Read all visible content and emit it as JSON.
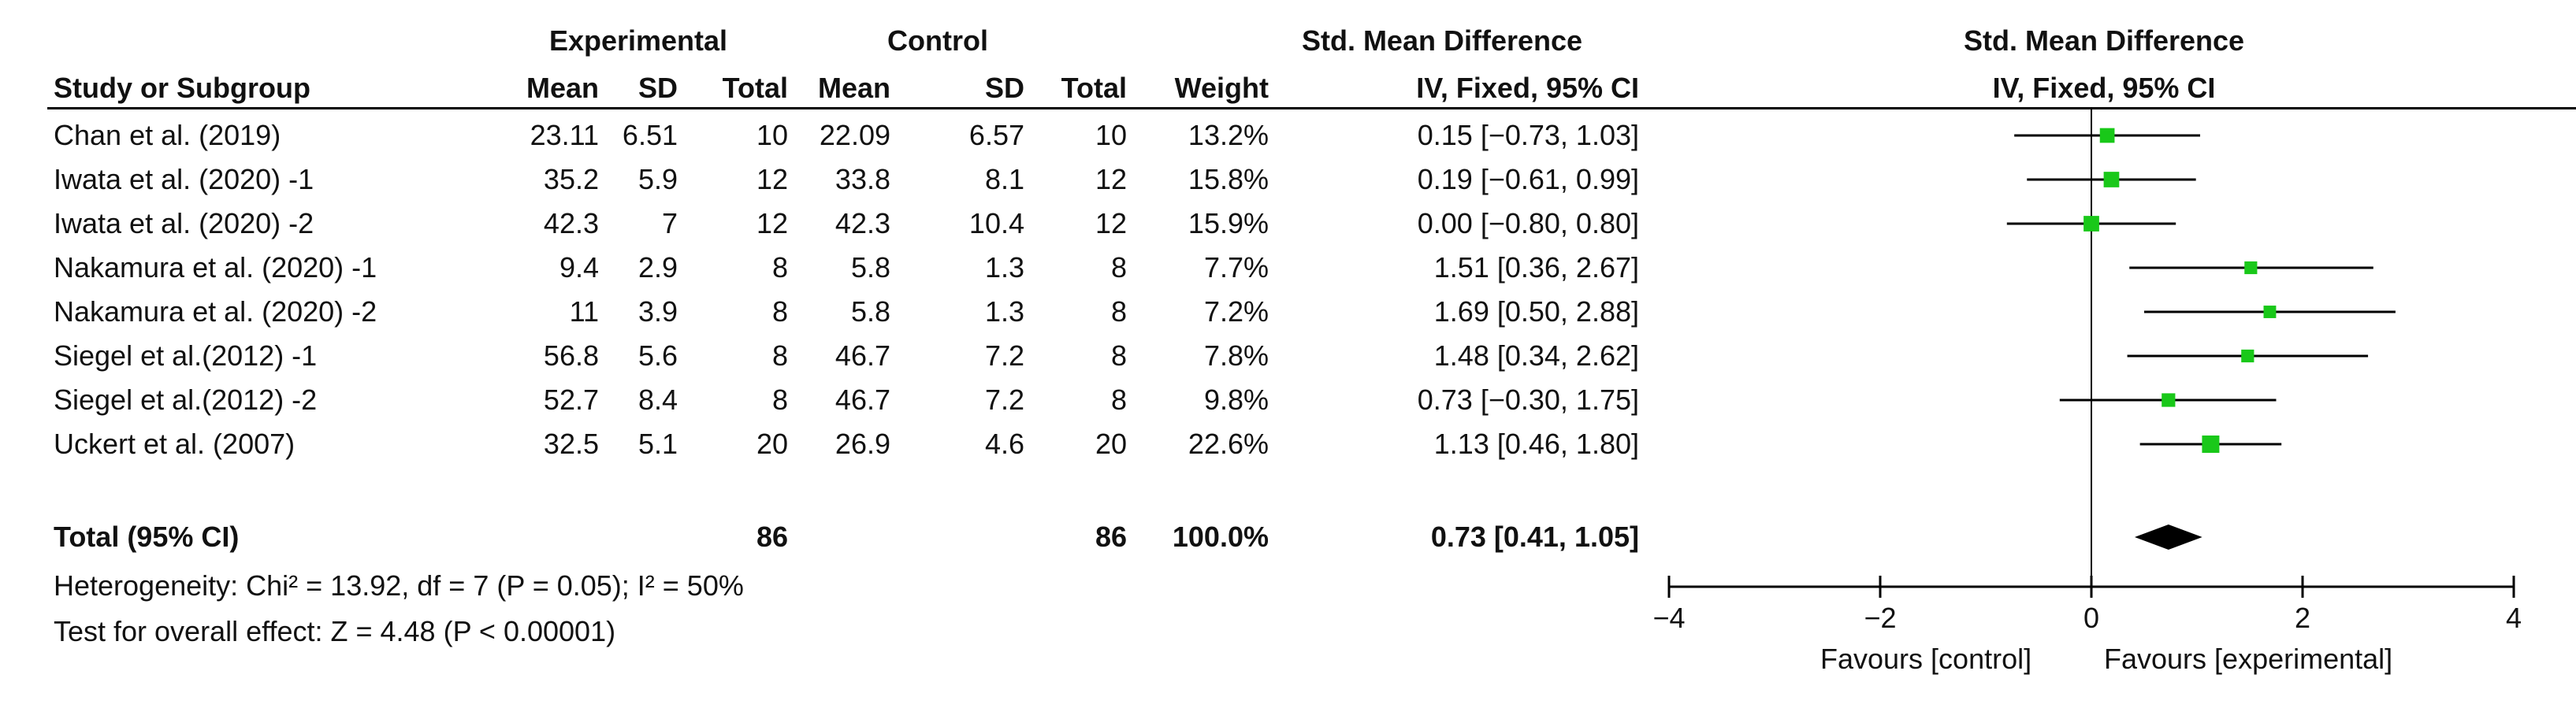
{
  "header": {
    "group_experimental": "Experimental",
    "group_control": "Control",
    "effect_label": "Std. Mean Difference",
    "plot_title": "Std. Mean Difference",
    "col_study": "Study or Subgroup",
    "col_exp_mean": "Mean",
    "col_exp_sd": "SD",
    "col_exp_total": "Total",
    "col_ctl_mean": "Mean",
    "col_ctl_sd": "SD",
    "col_ctl_total": "Total",
    "col_weight": "Weight",
    "col_ci": "IV, Fixed, 95% CI",
    "plot_subtitle": "IV, Fixed, 95% CI"
  },
  "rows": [
    {
      "study": "Chan et al. (2019)",
      "exp_mean": "23.11",
      "exp_sd": "6.51",
      "exp_total": "10",
      "ctl_mean": "22.09",
      "ctl_sd": "6.57",
      "ctl_total": "10",
      "weight": "13.2%",
      "ci": "0.15 [−0.73, 1.03]"
    },
    {
      "study": "Iwata et al. (2020) -1",
      "exp_mean": "35.2",
      "exp_sd": "5.9",
      "exp_total": "12",
      "ctl_mean": "33.8",
      "ctl_sd": "8.1",
      "ctl_total": "12",
      "weight": "15.8%",
      "ci": "0.19 [−0.61, 0.99]"
    },
    {
      "study": "Iwata et al. (2020) -2",
      "exp_mean": "42.3",
      "exp_sd": "7",
      "exp_total": "12",
      "ctl_mean": "42.3",
      "ctl_sd": "10.4",
      "ctl_total": "12",
      "weight": "15.9%",
      "ci": "0.00 [−0.80, 0.80]"
    },
    {
      "study": "Nakamura  et al. (2020) -1",
      "exp_mean": "9.4",
      "exp_sd": "2.9",
      "exp_total": "8",
      "ctl_mean": "5.8",
      "ctl_sd": "1.3",
      "ctl_total": "8",
      "weight": "7.7%",
      "ci": "1.51 [0.36, 2.67]"
    },
    {
      "study": "Nakamura  et al. (2020) -2",
      "exp_mean": "11",
      "exp_sd": "3.9",
      "exp_total": "8",
      "ctl_mean": "5.8",
      "ctl_sd": "1.3",
      "ctl_total": "8",
      "weight": "7.2%",
      "ci": "1.69 [0.50, 2.88]"
    },
    {
      "study": "Siegel et al.(2012) -1",
      "exp_mean": "56.8",
      "exp_sd": "5.6",
      "exp_total": "8",
      "ctl_mean": "46.7",
      "ctl_sd": "7.2",
      "ctl_total": "8",
      "weight": "7.8%",
      "ci": "1.48 [0.34, 2.62]"
    },
    {
      "study": "Siegel et al.(2012) -2",
      "exp_mean": "52.7",
      "exp_sd": "8.4",
      "exp_total": "8",
      "ctl_mean": "46.7",
      "ctl_sd": "7.2",
      "ctl_total": "8",
      "weight": "9.8%",
      "ci": "0.73 [−0.30, 1.75]"
    },
    {
      "study": "Uckert et al. (2007)",
      "exp_mean": "32.5",
      "exp_sd": "5.1",
      "exp_total": "20",
      "ctl_mean": "26.9",
      "ctl_sd": "4.6",
      "ctl_total": "20",
      "weight": "22.6%",
      "ci": "1.13 [0.46, 1.80]"
    }
  ],
  "total": {
    "label": "Total (95% CI)",
    "exp_total": "86",
    "ctl_total": "86",
    "weight": "100.0%",
    "ci": "0.73 [0.41, 1.05]"
  },
  "footer": {
    "heterogeneity": "Heterogeneity: Chi² = 13.92, df = 7 (P = 0.05); I² = 50%",
    "overall": "Test for overall effect: Z = 4.48 (P < 0.00001)"
  },
  "axis": {
    "ticks": [
      "−4",
      "−2",
      "0",
      "2",
      "4"
    ],
    "favours_left": "Favours [control]",
    "favours_right": "Favours [experimental]"
  },
  "colors": {
    "marker": "#19c819",
    "diamond": "#000000",
    "line": "#000000"
  },
  "chart_data": {
    "type": "forest",
    "xlim": [
      -4,
      4
    ],
    "x_ticks": [
      -4,
      -2,
      0,
      2,
      4
    ],
    "studies": [
      {
        "name": "Chan et al. (2019)",
        "est": 0.15,
        "lo": -0.73,
        "hi": 1.03,
        "weight": 13.2
      },
      {
        "name": "Iwata et al. (2020) -1",
        "est": 0.19,
        "lo": -0.61,
        "hi": 0.99,
        "weight": 15.8
      },
      {
        "name": "Iwata et al. (2020) -2",
        "est": 0.0,
        "lo": -0.8,
        "hi": 0.8,
        "weight": 15.9
      },
      {
        "name": "Nakamura  et al. (2020) -1",
        "est": 1.51,
        "lo": 0.36,
        "hi": 2.67,
        "weight": 7.7
      },
      {
        "name": "Nakamura  et al. (2020) -2",
        "est": 1.69,
        "lo": 0.5,
        "hi": 2.88,
        "weight": 7.2
      },
      {
        "name": "Siegel et al.(2012) -1",
        "est": 1.48,
        "lo": 0.34,
        "hi": 2.62,
        "weight": 7.8
      },
      {
        "name": "Siegel et al.(2012) -2",
        "est": 0.73,
        "lo": -0.3,
        "hi": 1.75,
        "weight": 9.8
      },
      {
        "name": "Uckert et al. (2007)",
        "est": 1.13,
        "lo": 0.46,
        "hi": 1.8,
        "weight": 22.6
      }
    ],
    "pooled": {
      "est": 0.73,
      "lo": 0.41,
      "hi": 1.05
    }
  }
}
